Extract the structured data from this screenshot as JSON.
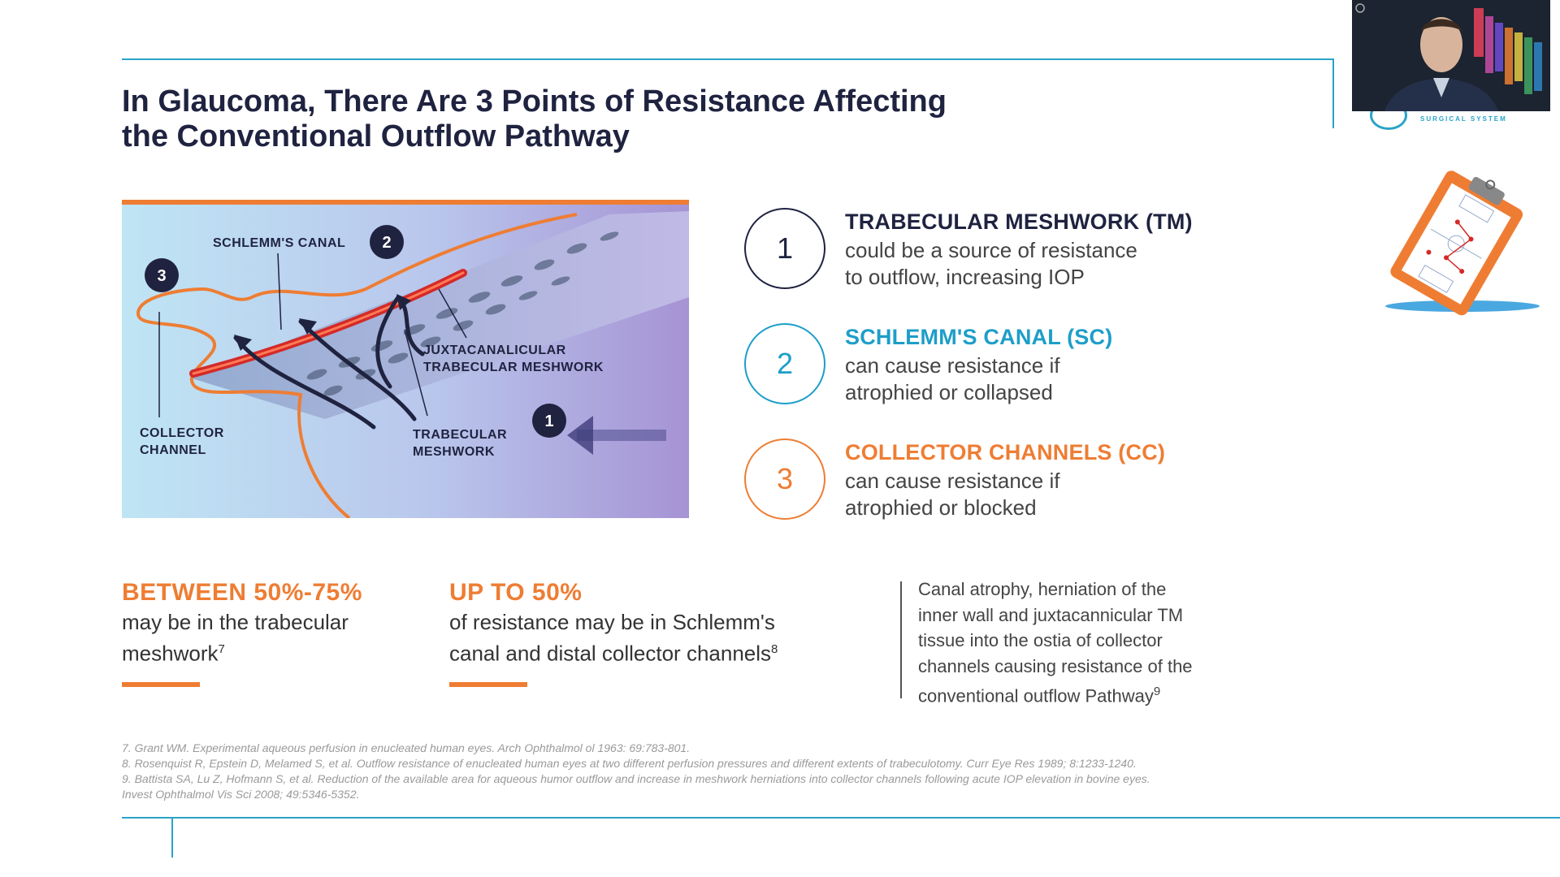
{
  "slide": {
    "title_line1": "In Glaucoma, There Are 3 Points of Resistance Affecting",
    "title_line2": "the Conventional Outflow Pathway"
  },
  "figure": {
    "labels": {
      "schlemms_canal": "SCHLEMM'S CANAL",
      "juxta_line1": "JUXTACANALICULAR",
      "juxta_line2": "TRABECULAR MESHWORK",
      "collector_line1": "COLLECTOR",
      "collector_line2": "CHANNEL",
      "trabecular_line1": "TRABECULAR",
      "trabecular_line2": "MESHWORK"
    },
    "markers": {
      "m1": "1",
      "m2": "2",
      "m3": "3"
    }
  },
  "points": [
    {
      "number": "1",
      "heading": "TRABECULAR MESHWORK (TM)",
      "line1": "could be a source of resistance",
      "line2": "to outflow, increasing IOP",
      "color": "#1f2340"
    },
    {
      "number": "2",
      "heading": "SCHLEMM'S CANAL (SC)",
      "line1": "can cause resistance if",
      "line2": "atrophied or collapsed",
      "color": "#1d9ec9"
    },
    {
      "number": "3",
      "heading": "COLLECTOR CHANNELS (CC)",
      "line1": "can cause resistance if",
      "line2": "atrophied or blocked",
      "color": "#ee7d33"
    }
  ],
  "stats": [
    {
      "heading": "BETWEEN 50%-75%",
      "line1": "may be in the trabecular",
      "line2": "meshwork",
      "sup": "7"
    },
    {
      "heading": "UP TO 50%",
      "line1": "of resistance may be in Schlemm's",
      "line2": "canal and distal collector channels",
      "sup": "8"
    }
  ],
  "quote": {
    "line1": "Canal atrophy, herniation of the",
    "line2": "inner wall and juxtacannicular TM",
    "line3": "tissue into the ostia of collector",
    "line4": "channels causing resistance of the",
    "line5": "conventional outflow Pathway",
    "sup": "9"
  },
  "references": [
    "7. Grant WM. Experimental aqueous perfusion in enucleated human eyes. Arch Ophthalmol ol 1963: 69:783-801.",
    "8. Rosenquist R, Epstein D, Melamed S, et al. Outflow resistance of enucleated human eyes at two different perfusion pressures and different extents of trabeculotomy. Curr Eye Res 1989; 8:1233-1240.",
    "9. Battista SA, Lu Z, Hofmann S, et al. Reduction of the available area for aqueous humor outflow and increase in meshwork herniations into collector channels following acute IOP elevation in bovine eyes.",
    "Invest Ophthalmol Vis Sci 2008; 49:5346-5352."
  ],
  "logo": {
    "text": "SURGICAL SYSTEM"
  },
  "colors": {
    "accent_teal": "#2aa3c7",
    "accent_orange": "#ee7d33",
    "navy": "#1f2340"
  },
  "icons": {
    "clipboard": "clipboard-icon",
    "video": "presenter-video-thumbnail"
  }
}
